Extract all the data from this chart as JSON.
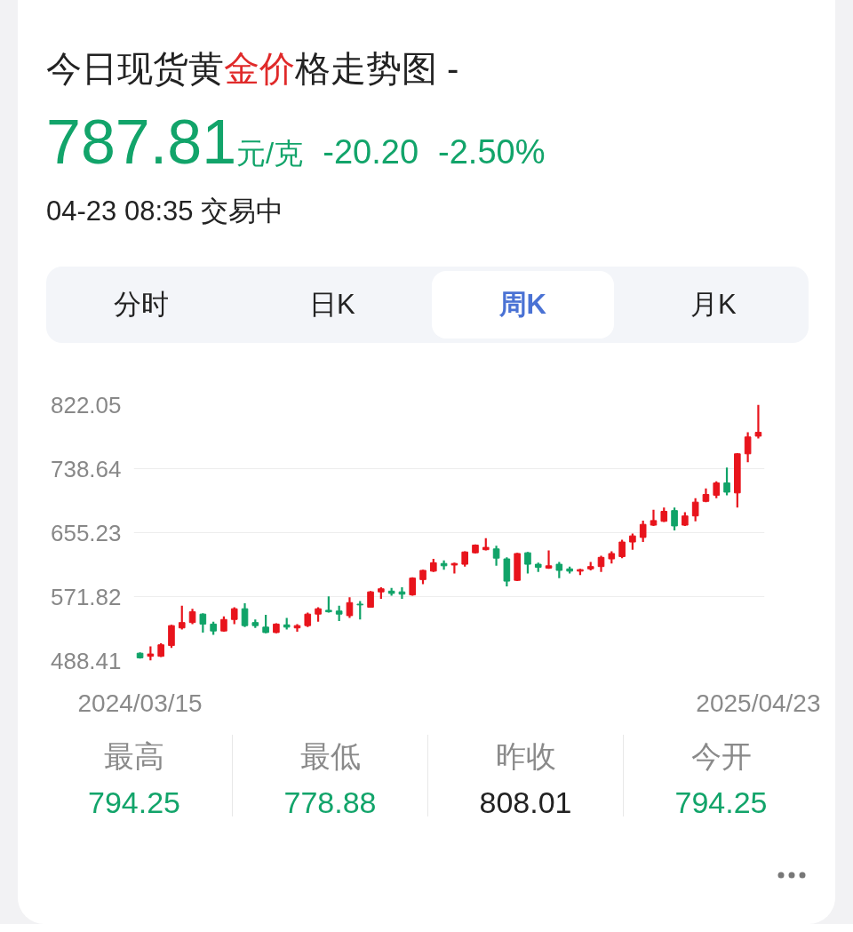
{
  "chart_data": {
    "type": "candlestick",
    "title": "今日现货黄金价格走势图 -",
    "annotations": [
      "787.81",
      "元/克",
      "-20.20",
      "-2.50%",
      "04-23 08:35 交易中",
      "分时",
      "日K",
      "周K",
      "月K",
      "最高",
      "794.25",
      "最低",
      "778.88",
      "昨收",
      "808.01",
      "今开",
      "794.25"
    ],
    "categories": [
      "2024/03/15",
      null,
      null,
      null,
      null,
      null,
      null,
      null,
      null,
      null,
      null,
      null,
      null,
      null,
      null,
      null,
      null,
      null,
      null,
      null,
      null,
      null,
      null,
      null,
      null,
      null,
      null,
      null,
      null,
      null,
      null,
      null,
      null,
      null,
      null,
      null,
      null,
      null,
      null,
      null,
      null,
      null,
      null,
      null,
      null,
      null,
      null,
      null,
      null,
      null,
      null,
      null,
      null,
      null,
      null,
      null,
      null,
      null,
      null,
      "2025/04/23"
    ],
    "ohlc": [
      [
        498,
        499,
        491,
        492
      ],
      [
        494,
        507,
        488.41,
        497
      ],
      [
        494,
        511,
        493,
        509
      ],
      [
        508,
        535,
        505,
        534
      ],
      [
        531,
        560,
        529,
        538
      ],
      [
        538,
        556,
        536,
        552
      ],
      [
        549,
        550,
        525,
        536
      ],
      [
        536,
        539,
        522,
        527
      ],
      [
        527,
        546,
        526,
        542
      ],
      [
        542,
        558,
        536,
        556
      ],
      [
        556,
        563,
        532,
        534
      ],
      [
        538,
        542,
        531,
        534
      ],
      [
        532,
        548,
        524,
        525
      ],
      [
        525,
        537,
        524,
        536
      ],
      [
        535,
        544,
        529,
        532
      ],
      [
        531,
        536,
        526,
        534
      ],
      [
        534,
        551,
        532,
        549
      ],
      [
        549,
        558,
        539,
        556
      ],
      [
        554,
        572,
        551,
        552
      ],
      [
        553,
        560,
        540,
        549
      ],
      [
        547,
        571,
        544,
        564
      ],
      [
        562,
        566,
        542,
        561
      ],
      [
        558,
        579,
        558,
        578
      ],
      [
        578,
        584,
        569,
        582
      ],
      [
        579,
        583,
        573,
        576
      ],
      [
        578,
        584,
        569,
        575
      ],
      [
        574,
        597,
        573,
        596
      ],
      [
        594,
        607,
        588,
        606
      ],
      [
        605,
        621,
        604,
        616
      ],
      [
        615,
        619,
        607,
        612
      ],
      [
        613,
        616,
        602,
        615
      ],
      [
        614,
        631,
        611,
        630
      ],
      [
        629,
        640,
        628,
        639
      ],
      [
        633,
        648,
        632,
        636
      ],
      [
        634,
        638,
        612,
        622
      ],
      [
        621,
        623,
        585,
        592
      ],
      [
        593,
        629,
        592,
        628
      ],
      [
        629,
        630,
        602,
        614
      ],
      [
        614,
        616,
        604,
        610
      ],
      [
        609,
        632,
        608,
        612
      ],
      [
        614,
        617,
        596,
        606
      ],
      [
        608,
        611,
        602,
        605
      ],
      [
        605,
        608,
        600,
        607
      ],
      [
        608,
        617,
        606,
        611
      ],
      [
        611,
        625,
        604,
        623
      ],
      [
        621,
        631,
        615,
        628
      ],
      [
        624,
        646,
        622,
        643
      ],
      [
        643,
        654,
        633,
        651
      ],
      [
        649,
        671,
        643,
        666
      ],
      [
        665,
        685,
        664,
        671
      ],
      [
        670,
        688,
        669,
        683
      ],
      [
        684,
        688,
        658,
        664
      ],
      [
        665,
        682,
        664,
        677
      ],
      [
        677,
        700,
        670,
        695
      ],
      [
        696,
        713,
        695,
        705
      ],
      [
        704,
        722,
        700,
        720
      ],
      [
        720,
        740,
        704,
        708
      ],
      [
        707,
        759,
        688,
        758
      ],
      [
        758,
        786,
        747,
        780
      ],
      [
        781,
        822.05,
        778,
        786
      ]
    ],
    "colors": [
      "#10a368",
      "#e8141c",
      "#e8141c",
      "#e8141c",
      "#e8141c",
      "#e8141c",
      "#10a368",
      "#10a368",
      "#e8141c",
      "#e8141c",
      "#10a368",
      "#10a368",
      "#10a368",
      "#e8141c",
      "#10a368",
      "#e8141c",
      "#e8141c",
      "#e8141c",
      "#10a368",
      "#10a368",
      "#e8141c",
      "#10a368",
      "#e8141c",
      "#e8141c",
      "#10a368",
      "#10a368",
      "#e8141c",
      "#e8141c",
      "#e8141c",
      "#10a368",
      "#e8141c",
      "#e8141c",
      "#e8141c",
      "#e8141c",
      "#10a368",
      "#10a368",
      "#e8141c",
      "#10a368",
      "#10a368",
      "#e8141c",
      "#10a368",
      "#10a368",
      "#e8141c",
      "#e8141c",
      "#e8141c",
      "#e8141c",
      "#e8141c",
      "#e8141c",
      "#e8141c",
      "#e8141c",
      "#e8141c",
      "#10a368",
      "#e8141c",
      "#e8141c",
      "#e8141c",
      "#e8141c",
      "#10a368",
      "#e8141c",
      "#e8141c",
      "#e8141c"
    ],
    "ylim": [
      488.41,
      822.05
    ],
    "yticks": [
      488.41,
      571.82,
      655.23,
      738.64,
      822.05
    ],
    "grid": "y"
  }
}
